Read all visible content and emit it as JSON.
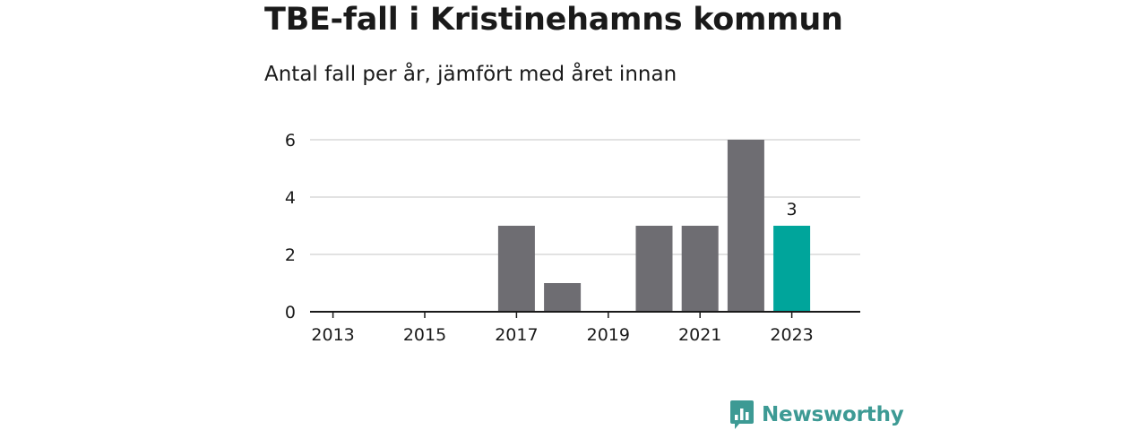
{
  "chart_data": {
    "type": "bar",
    "title": "TBE-fall i Kristinehamns kommun",
    "subtitle": "Antal fall per år, jämfört med året innan",
    "categories": [
      "2013",
      "2014",
      "2015",
      "2016",
      "2017",
      "2018",
      "2019",
      "2020",
      "2021",
      "2022",
      "2023"
    ],
    "values": [
      0,
      0,
      0,
      0,
      3,
      1,
      0,
      3,
      3,
      6,
      3
    ],
    "x_tick_labels": [
      "2013",
      "2015",
      "2017",
      "2019",
      "2021",
      "2023"
    ],
    "y_ticks": [
      0,
      2,
      4,
      6
    ],
    "ylim": [
      0,
      6
    ],
    "grid": true,
    "legend": "none",
    "highlight_category": "2023",
    "highlight_label": "3",
    "colors": {
      "bar": "#6e6d72",
      "highlight": "#00a59b",
      "grid": "#d9d9d9",
      "axis": "#1a1a1a"
    }
  },
  "brand": {
    "name": "Newsworthy",
    "logo_icon": "bar-chart-speech-bubble-icon",
    "color": "#3d9a94"
  }
}
